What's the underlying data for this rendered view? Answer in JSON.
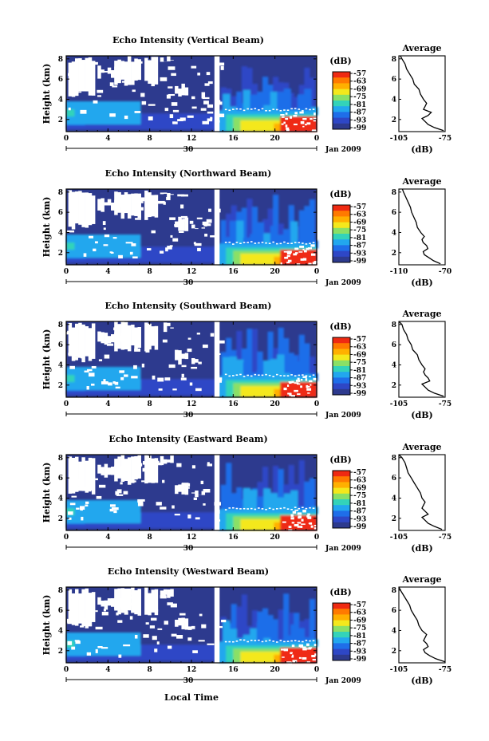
{
  "figure": {
    "x_label": "Local Time",
    "date_label": "Jan 2009",
    "day_label": "30",
    "colorbar_unit": "(dB)",
    "average_title": "Average",
    "average_xlabel": "(dB)"
  },
  "chart_data": [
    {
      "type": "heatmap",
      "title": "Echo Intensity (Vertical Beam)",
      "xlabel": "Local Time",
      "ylabel": "Height (km)",
      "x_ticks": [
        "0",
        "4",
        "8",
        "12",
        "16",
        "20",
        "0"
      ],
      "xlim_hours": [
        0,
        24
      ],
      "y_ticks": [
        "2",
        "4",
        "6",
        "8"
      ],
      "ylim_km": [
        0.8,
        8.3
      ],
      "colorbar": {
        "unit": "(dB)",
        "ticks": [
          "-57",
          "-63",
          "-69",
          "-75",
          "-81",
          "-87",
          "-93",
          "-99"
        ],
        "colors": [
          "#ef2a12",
          "#ff7a00",
          "#ffb000",
          "#f4e81c",
          "#8ae066",
          "#33d3b9",
          "#22a7ee",
          "#1f6ee9",
          "#2e47c6",
          "#2d3a8e"
        ]
      },
      "average_profile": {
        "title": "Average",
        "xlabel": "(dB)",
        "x_ticks": [
          "-105",
          "-75"
        ],
        "xlim": [
          -105,
          -75
        ],
        "y_ticks": [
          "2",
          "4",
          "6",
          "8"
        ],
        "height_km": [
          0.9,
          1.2,
          1.5,
          1.8,
          2.1,
          2.4,
          2.7,
          3.0,
          3.3,
          3.6,
          4.0,
          4.5,
          5.0,
          5.5,
          6.0,
          6.5,
          7.0,
          7.5,
          8.0,
          8.3
        ],
        "echo_db": [
          -76,
          -82,
          -86,
          -88,
          -90,
          -86,
          -84,
          -89,
          -88,
          -87,
          -89,
          -91,
          -92,
          -95,
          -96,
          -98,
          -100,
          -101,
          -103,
          -104
        ]
      }
    },
    {
      "type": "heatmap",
      "title": "Echo Intensity (Northward Beam)",
      "xlabel": "Local Time",
      "ylabel": "Height (km)",
      "x_ticks": [
        "0",
        "4",
        "8",
        "12",
        "16",
        "20",
        "0"
      ],
      "xlim_hours": [
        0,
        24
      ],
      "y_ticks": [
        "2",
        "4",
        "6",
        "8"
      ],
      "ylim_km": [
        0.8,
        8.3
      ],
      "colorbar": {
        "unit": "(dB)",
        "ticks": [
          "-57",
          "-63",
          "-69",
          "-75",
          "-81",
          "-87",
          "-93",
          "-99"
        ],
        "colors": [
          "#ef2a12",
          "#ff7a00",
          "#ffb000",
          "#f4e81c",
          "#8ae066",
          "#33d3b9",
          "#22a7ee",
          "#1f6ee9",
          "#2e47c6",
          "#2d3a8e"
        ]
      },
      "average_profile": {
        "title": "Average",
        "xlabel": "(dB)",
        "x_ticks": [
          "-110",
          "-70"
        ],
        "xlim": [
          -110,
          -70
        ],
        "y_ticks": [
          "2",
          "4",
          "6",
          "8"
        ],
        "height_km": [
          0.9,
          1.2,
          1.5,
          1.8,
          2.1,
          2.4,
          2.7,
          3.0,
          3.3,
          3.6,
          4.0,
          4.5,
          5.0,
          5.5,
          6.0,
          6.5,
          7.0,
          7.5,
          8.0,
          8.3
        ],
        "echo_db": [
          -74,
          -80,
          -84,
          -88,
          -89,
          -85,
          -86,
          -89,
          -90,
          -88,
          -91,
          -94,
          -95,
          -97,
          -99,
          -100,
          -102,
          -104,
          -106,
          -107
        ]
      }
    },
    {
      "type": "heatmap",
      "title": "Echo Intensity (Southward Beam)",
      "xlabel": "Local Time",
      "ylabel": "Height (km)",
      "x_ticks": [
        "0",
        "4",
        "8",
        "12",
        "16",
        "20",
        "0"
      ],
      "xlim_hours": [
        0,
        24
      ],
      "y_ticks": [
        "2",
        "4",
        "6",
        "8"
      ],
      "ylim_km": [
        0.8,
        8.3
      ],
      "colorbar": {
        "unit": "(dB)",
        "ticks": [
          "-57",
          "-63",
          "-69",
          "-75",
          "-81",
          "-87",
          "-93",
          "-99"
        ],
        "colors": [
          "#ef2a12",
          "#ff7a00",
          "#ffb000",
          "#f4e81c",
          "#8ae066",
          "#33d3b9",
          "#22a7ee",
          "#1f6ee9",
          "#2e47c6",
          "#2d3a8e"
        ]
      },
      "average_profile": {
        "title": "Average",
        "xlabel": "(dB)",
        "x_ticks": [
          "-105",
          "-75"
        ],
        "xlim": [
          -105,
          -75
        ],
        "y_ticks": [
          "2",
          "4",
          "6",
          "8"
        ],
        "height_km": [
          0.9,
          1.2,
          1.5,
          1.8,
          2.1,
          2.4,
          2.7,
          3.0,
          3.3,
          3.6,
          4.0,
          4.5,
          5.0,
          5.5,
          6.0,
          6.5,
          7.0,
          7.5,
          8.0,
          8.3
        ],
        "echo_db": [
          -76,
          -82,
          -86,
          -88,
          -90,
          -85,
          -86,
          -88,
          -89,
          -88,
          -90,
          -92,
          -93,
          -96,
          -97,
          -99,
          -100,
          -102,
          -103,
          -105
        ]
      }
    },
    {
      "type": "heatmap",
      "title": "Echo Intensity (Eastward Beam)",
      "xlabel": "Local Time",
      "ylabel": "Height (km)",
      "x_ticks": [
        "0",
        "4",
        "8",
        "12",
        "16",
        "20",
        "0"
      ],
      "xlim_hours": [
        0,
        24
      ],
      "y_ticks": [
        "2",
        "4",
        "6",
        "8"
      ],
      "ylim_km": [
        0.8,
        8.3
      ],
      "colorbar": {
        "unit": "(dB)",
        "ticks": [
          "-57",
          "-63",
          "-69",
          "-75",
          "-81",
          "-87",
          "-93",
          "-99"
        ],
        "colors": [
          "#ef2a12",
          "#ff7a00",
          "#ffb000",
          "#f4e81c",
          "#8ae066",
          "#33d3b9",
          "#22a7ee",
          "#1f6ee9",
          "#2e47c6",
          "#2d3a8e"
        ]
      },
      "average_profile": {
        "title": "Average",
        "xlabel": "(dB)",
        "x_ticks": [
          "-105",
          "-75"
        ],
        "xlim": [
          -105,
          -75
        ],
        "y_ticks": [
          "2",
          "4",
          "6",
          "8"
        ],
        "height_km": [
          0.9,
          1.2,
          1.5,
          1.8,
          2.1,
          2.4,
          2.7,
          3.0,
          3.3,
          3.6,
          4.0,
          4.5,
          5.0,
          5.5,
          6.0,
          6.5,
          7.0,
          7.5,
          8.0,
          8.3
        ],
        "echo_db": [
          -77,
          -82,
          -86,
          -88,
          -90,
          -86,
          -88,
          -90,
          -89,
          -88,
          -90,
          -91,
          -93,
          -95,
          -97,
          -99,
          -100,
          -101,
          -103,
          -105
        ]
      }
    },
    {
      "type": "heatmap",
      "title": "Echo Intensity (Westward Beam)",
      "xlabel": "Local Time",
      "ylabel": "Height (km)",
      "x_ticks": [
        "0",
        "4",
        "8",
        "12",
        "16",
        "20",
        "0"
      ],
      "xlim_hours": [
        0,
        24
      ],
      "y_ticks": [
        "2",
        "4",
        "6",
        "8"
      ],
      "ylim_km": [
        0.8,
        8.3
      ],
      "colorbar": {
        "unit": "(dB)",
        "ticks": [
          "-57",
          "-63",
          "-69",
          "-75",
          "-81",
          "-87",
          "-93",
          "-99"
        ],
        "colors": [
          "#ef2a12",
          "#ff7a00",
          "#ffb000",
          "#f4e81c",
          "#8ae066",
          "#33d3b9",
          "#22a7ee",
          "#1f6ee9",
          "#2e47c6",
          "#2d3a8e"
        ]
      },
      "average_profile": {
        "title": "Average",
        "xlabel": "(dB)",
        "x_ticks": [
          "-105",
          "-75"
        ],
        "xlim": [
          -105,
          -75
        ],
        "y_ticks": [
          "2",
          "4",
          "6",
          "8"
        ],
        "height_km": [
          0.9,
          1.2,
          1.5,
          1.8,
          2.1,
          2.4,
          2.7,
          3.0,
          3.3,
          3.6,
          4.0,
          4.5,
          5.0,
          5.5,
          6.0,
          6.5,
          7.0,
          7.5,
          8.0,
          8.3
        ],
        "echo_db": [
          -75,
          -81,
          -85,
          -88,
          -89,
          -86,
          -87,
          -89,
          -88,
          -87,
          -90,
          -92,
          -93,
          -95,
          -97,
          -98,
          -100,
          -102,
          -104,
          -105
        ]
      }
    }
  ]
}
